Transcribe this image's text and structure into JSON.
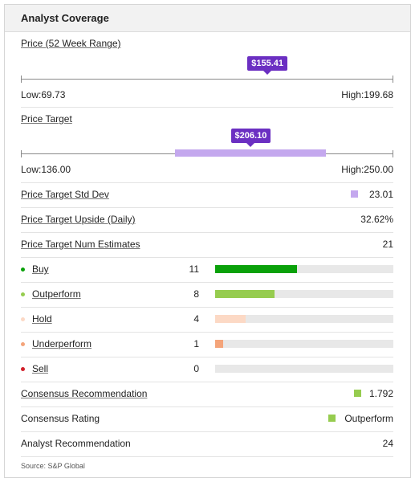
{
  "header": {
    "title": "Analyst Coverage"
  },
  "price_range": {
    "label": "Price (52 Week Range)",
    "current": "$155.41",
    "low_label": "Low:69.73",
    "high_label": "High:199.68",
    "low": 69.73,
    "high": 199.68,
    "current_value": 155.41
  },
  "price_target": {
    "label": "Price Target",
    "current": "$206.10",
    "low_label": "Low:136.00",
    "high_label": "High:250.00",
    "low": 136.0,
    "high": 250.0,
    "current_value": 206.1
  },
  "std_dev": {
    "label": "Price Target Std Dev",
    "value": "23.01"
  },
  "upside": {
    "label": "Price Target Upside (Daily)",
    "value": "32.62%"
  },
  "num_estimates": {
    "label": "Price Target Num Estimates",
    "value": "21"
  },
  "ratings": [
    {
      "label": "Buy",
      "count": "11",
      "fraction": 0.46,
      "color": "#0aa10a"
    },
    {
      "label": "Outperform",
      "count": "8",
      "fraction": 0.335,
      "color": "#96cc4f"
    },
    {
      "label": "Hold",
      "count": "4",
      "fraction": 0.17,
      "color": "#fcd9c5"
    },
    {
      "label": "Underperform",
      "count": "1",
      "fraction": 0.045,
      "color": "#f4a47a"
    },
    {
      "label": "Sell",
      "count": "0",
      "fraction": 0.0,
      "color": "#d11f2a"
    }
  ],
  "consensus_recommendation": {
    "label": "Consensus Recommendation",
    "value": "1.792"
  },
  "consensus_rating": {
    "label": "Consensus Rating",
    "value": "Outperform"
  },
  "analyst_recommendation": {
    "label": "Analyst Recommendation",
    "value": "24"
  },
  "source": "Source: S&P Global",
  "colors": {
    "accent": "#6b2fc2",
    "target_bar": "#c4a8ee",
    "consensus": "#96cc4f"
  }
}
